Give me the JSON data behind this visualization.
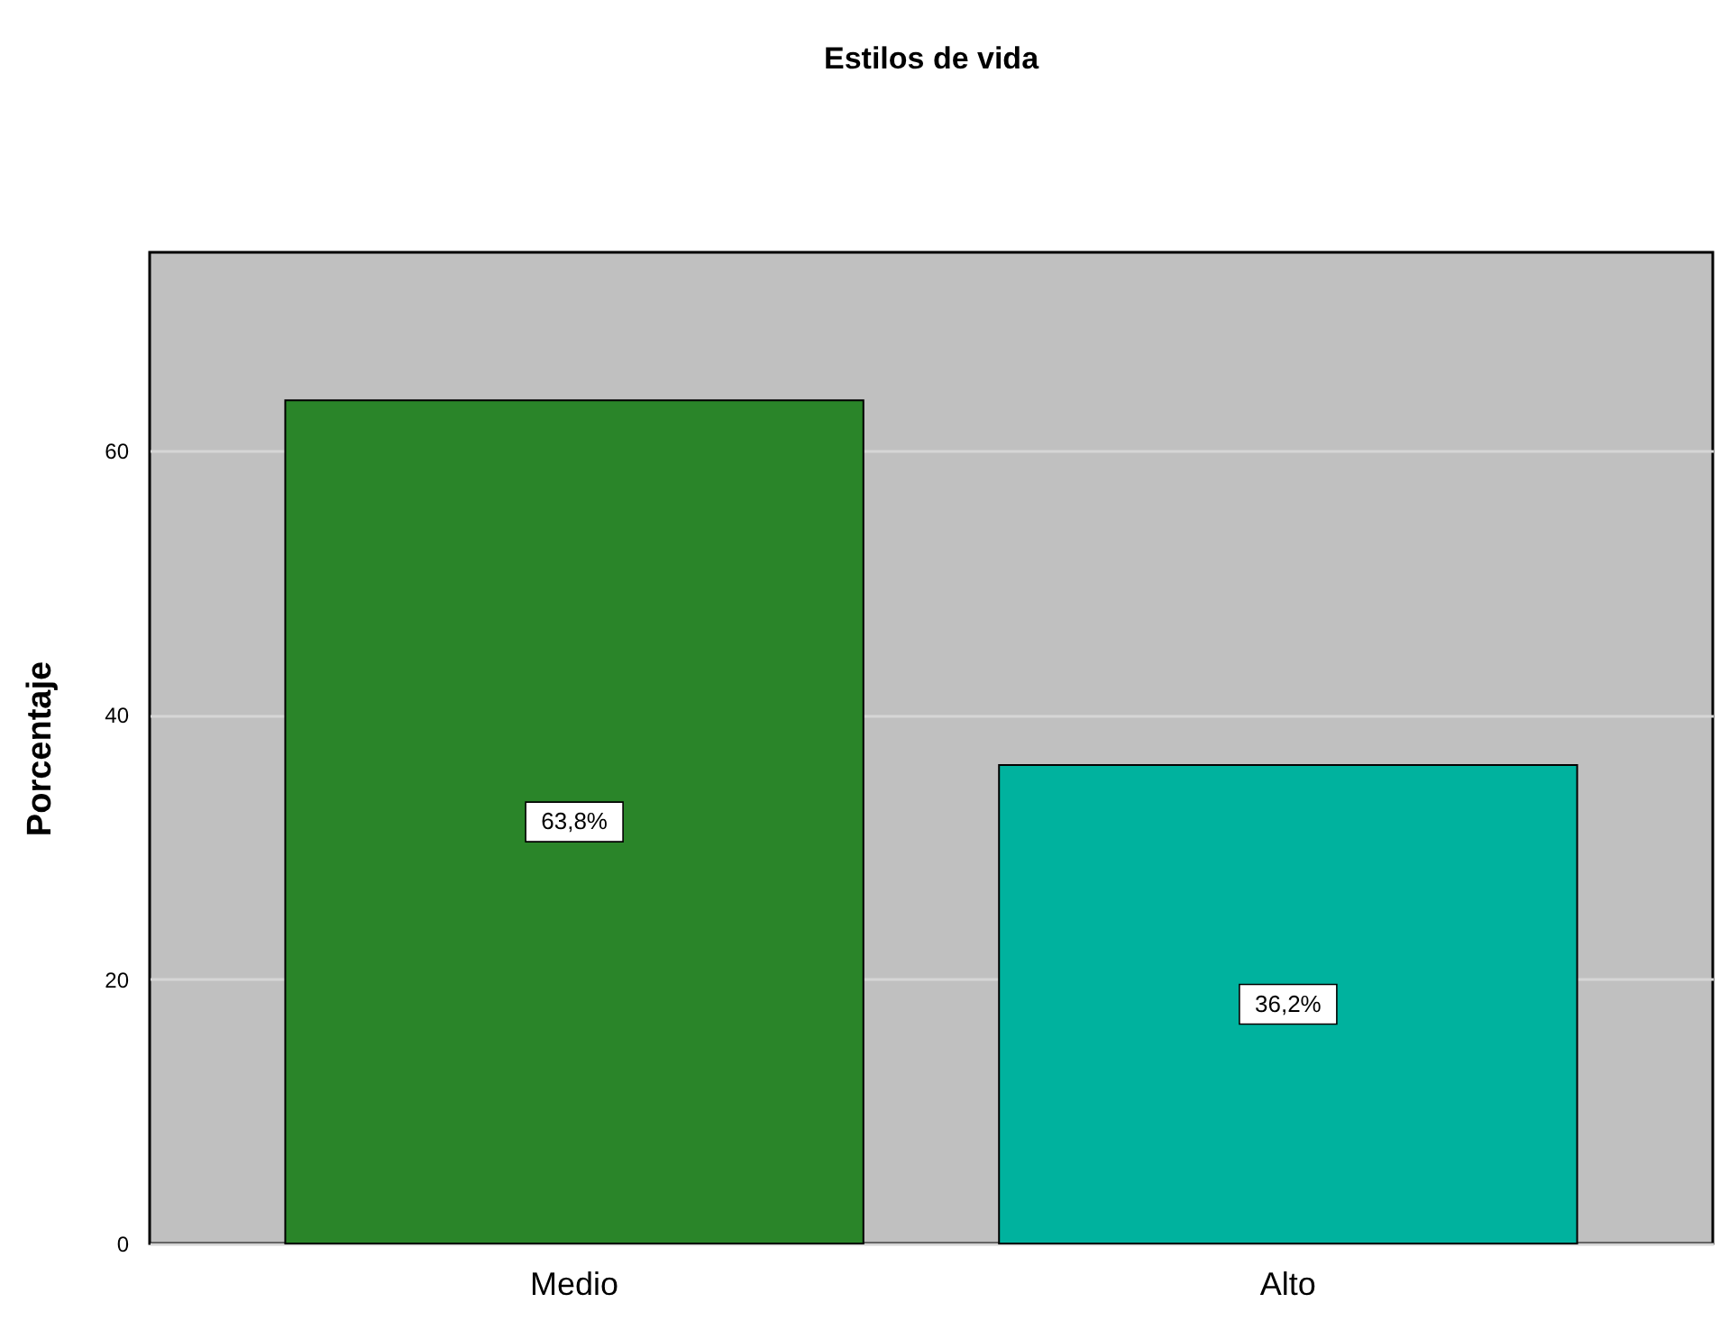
{
  "chart_data": {
    "type": "bar",
    "title": "Estilos de vida",
    "ylabel": "Porcentaje",
    "categories": [
      "Medio",
      "Alto"
    ],
    "values": [
      63.8,
      36.2
    ],
    "colors": [
      "#2a8529",
      "#00b29e"
    ],
    "value_labels": [
      "63,8%",
      "36,2%"
    ],
    "ylim": [
      0,
      75
    ],
    "yticks": [
      0,
      20,
      40,
      60
    ],
    "grid": "y"
  }
}
